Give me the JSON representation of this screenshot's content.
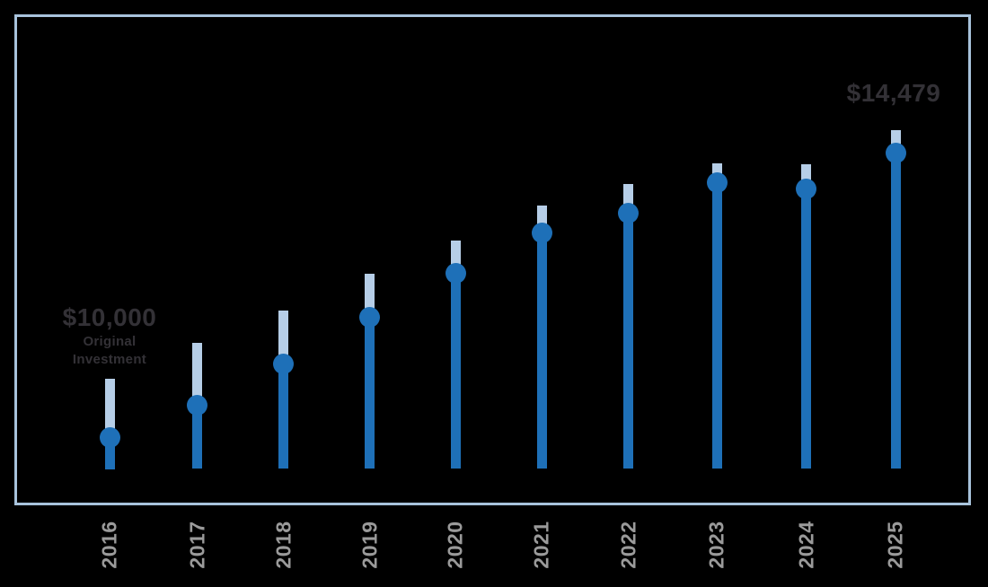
{
  "page": {
    "background": "#000000"
  },
  "frame": {
    "border_color": "#a8c3dc"
  },
  "annotations": {
    "start_value": "$10,000",
    "start_label_line1": "Original",
    "start_label_line2": "Investment",
    "end_value": "$14,479"
  },
  "chart_data": {
    "type": "lollipop",
    "categories": [
      "2016",
      "2017",
      "2018",
      "2019",
      "2020",
      "2021",
      "2022",
      "2023",
      "2024",
      "2025"
    ],
    "series": [
      {
        "name": "investment_value_dot",
        "values": [
          10000,
          10500,
          11150,
          11890,
          12580,
          13220,
          13540,
          14020,
          13920,
          14479
        ]
      },
      {
        "name": "tip_extension_top",
        "values": [
          10920,
          11490,
          11990,
          12580,
          13100,
          13660,
          13990,
          14320,
          14300,
          14840
        ]
      }
    ],
    "annotated_points": [
      {
        "category": "2016",
        "label": "$10,000",
        "sublabel": "Original Investment"
      },
      {
        "category": "2025",
        "label": "$14,479"
      }
    ],
    "xlabel": "",
    "ylabel": "",
    "x_tick_label_rotation": -90,
    "grid": false,
    "legend": null,
    "value_axis_visible": false,
    "colors": {
      "stem": "#1e70b8",
      "dot": "#1e70b8",
      "tip": "#b6cee7",
      "x_tick_label": "#9a9a9a",
      "annotation_text": "#333136",
      "frame_border": "#a8c3dc"
    }
  }
}
